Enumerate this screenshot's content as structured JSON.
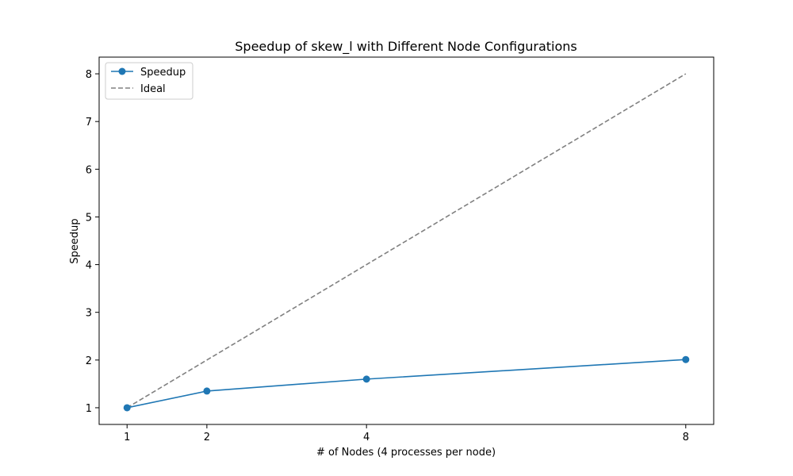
{
  "chart_data": {
    "type": "line",
    "title": "Speedup of skew_l with Different Node Configurations",
    "xlabel": "# of Nodes (4 processes per node)",
    "ylabel": "Speedup",
    "x_ticks": [
      1,
      2,
      4,
      8
    ],
    "y_ticks": [
      1,
      2,
      3,
      4,
      5,
      6,
      7,
      8
    ],
    "xlim": [
      0.65,
      8.35
    ],
    "ylim": [
      0.65,
      8.35
    ],
    "grid": false,
    "legend_position": "top-left",
    "series": [
      {
        "name": "Speedup",
        "color": "#1f77b4",
        "style": "solid",
        "marker": "circle",
        "x": [
          1,
          2,
          4,
          8
        ],
        "y": [
          1.0,
          1.35,
          1.6,
          2.01
        ]
      },
      {
        "name": "Ideal",
        "color": "#808080",
        "style": "dashed",
        "marker": "none",
        "x": [
          1,
          2,
          4,
          8
        ],
        "y": [
          1,
          2,
          4,
          8
        ]
      }
    ]
  }
}
